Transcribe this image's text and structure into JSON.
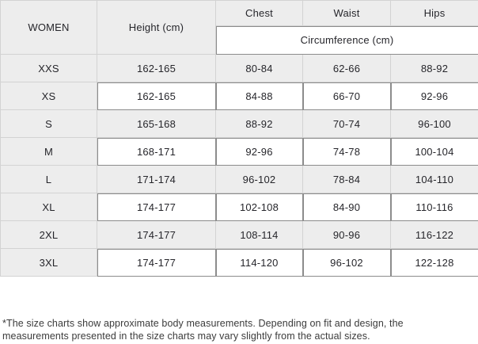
{
  "colors": {
    "stripe_gray": "#EDEDED",
    "border_light": "#D3D3D3",
    "border_dark": "#8C8C8C",
    "text": "#26262B",
    "footnote_text": "#3B3B3B"
  },
  "size_chart": {
    "group_label": "WOMEN",
    "columns": {
      "height": "Height (cm)",
      "chest": "Chest",
      "waist": "Waist",
      "hips": "Hips"
    },
    "subheader": "Circumference (cm)",
    "rows": [
      {
        "size": "XXS",
        "height": "162-165",
        "chest": "80-84",
        "waist": "62-66",
        "hips": "88-92"
      },
      {
        "size": "XS",
        "height": "162-165",
        "chest": "84-88",
        "waist": "66-70",
        "hips": "92-96"
      },
      {
        "size": "S",
        "height": "165-168",
        "chest": "88-92",
        "waist": "70-74",
        "hips": "96-100"
      },
      {
        "size": "M",
        "height": "168-171",
        "chest": "92-96",
        "waist": "74-78",
        "hips": "100-104"
      },
      {
        "size": "L",
        "height": "171-174",
        "chest": "96-102",
        "waist": "78-84",
        "hips": "104-110"
      },
      {
        "size": "XL",
        "height": "174-177",
        "chest": "102-108",
        "waist": "84-90",
        "hips": "110-116"
      },
      {
        "size": "2XL",
        "height": "174-177",
        "chest": "108-114",
        "waist": "90-96",
        "hips": "116-122"
      },
      {
        "size": "3XL",
        "height": "174-177",
        "chest": "114-120",
        "waist": "96-102",
        "hips": "122-128"
      }
    ]
  },
  "footnote": "*The size charts show approximate body measurements. Depending on fit and design, the measurements presented in the size charts may vary slightly from the actual sizes."
}
